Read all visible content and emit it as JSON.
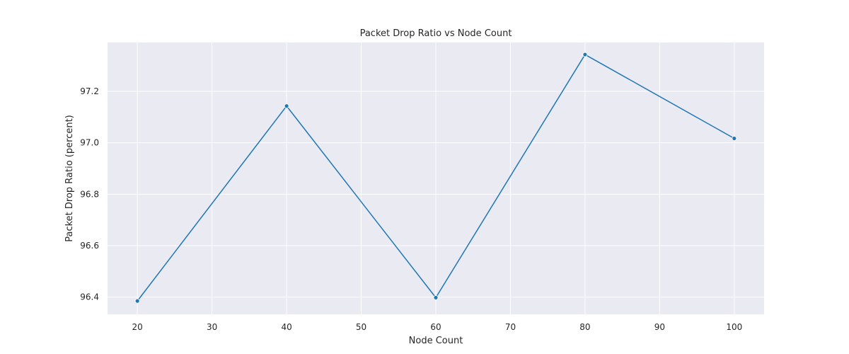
{
  "chart_data": {
    "type": "line",
    "title": "Packet Drop Ratio vs Node Count",
    "xlabel": "Node Count",
    "ylabel": "Packet Drop Ratio (percent)",
    "x": [
      20,
      40,
      60,
      80,
      100
    ],
    "series": [
      {
        "values": [
          96.385,
          97.143,
          96.398,
          97.343,
          97.017
        ]
      }
    ],
    "xlim": [
      16,
      104
    ],
    "ylim": [
      96.333,
      97.39
    ],
    "xticks": [
      20,
      30,
      40,
      50,
      60,
      70,
      80,
      90,
      100
    ],
    "xtick_labels": [
      "20",
      "30",
      "40",
      "50",
      "60",
      "70",
      "80",
      "90",
      "100"
    ],
    "yticks": [
      96.4,
      96.6,
      96.8,
      97.0,
      97.2
    ],
    "ytick_labels": [
      "96.4",
      "96.6",
      "96.8",
      "97.0",
      "97.2"
    ],
    "grid": true,
    "colors": {
      "plot_background": "#eaeaf2",
      "grid": "#ffffff",
      "line": "#1f77b4",
      "text": "#262626"
    }
  }
}
